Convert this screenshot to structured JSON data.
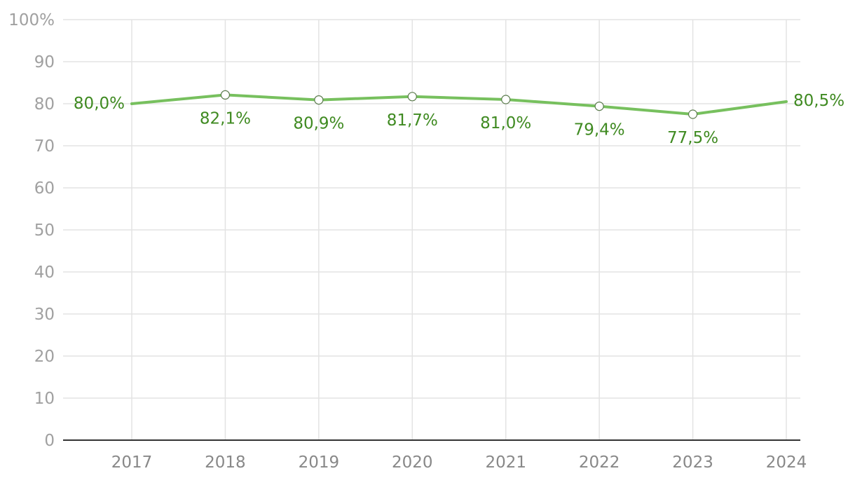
{
  "chart_data": {
    "type": "line",
    "title": "",
    "xlabel": "",
    "ylabel": "",
    "categories": [
      "2017",
      "2018",
      "2019",
      "2020",
      "2021",
      "2022",
      "2023",
      "2024"
    ],
    "series": [
      {
        "values": [
          80.0,
          82.1,
          80.9,
          81.7,
          81.0,
          79.4,
          77.5,
          80.5
        ],
        "data_labels": [
          "80,0%",
          "82,1%",
          "80,9%",
          "81,7%",
          "81,0%",
          "79,4%",
          "77,5%",
          "80,5%"
        ],
        "color": "#77c05e",
        "label_color": "#3f8a21"
      }
    ],
    "ylim": [
      0,
      100
    ],
    "y_ticks": [
      0,
      10,
      20,
      30,
      40,
      50,
      60,
      70,
      80,
      90,
      100
    ],
    "y_tick_labels": [
      "0",
      "10",
      "20",
      "30",
      "40",
      "50",
      "60",
      "70",
      "80",
      "90",
      "100%"
    ],
    "grid": true,
    "legend": "none"
  }
}
